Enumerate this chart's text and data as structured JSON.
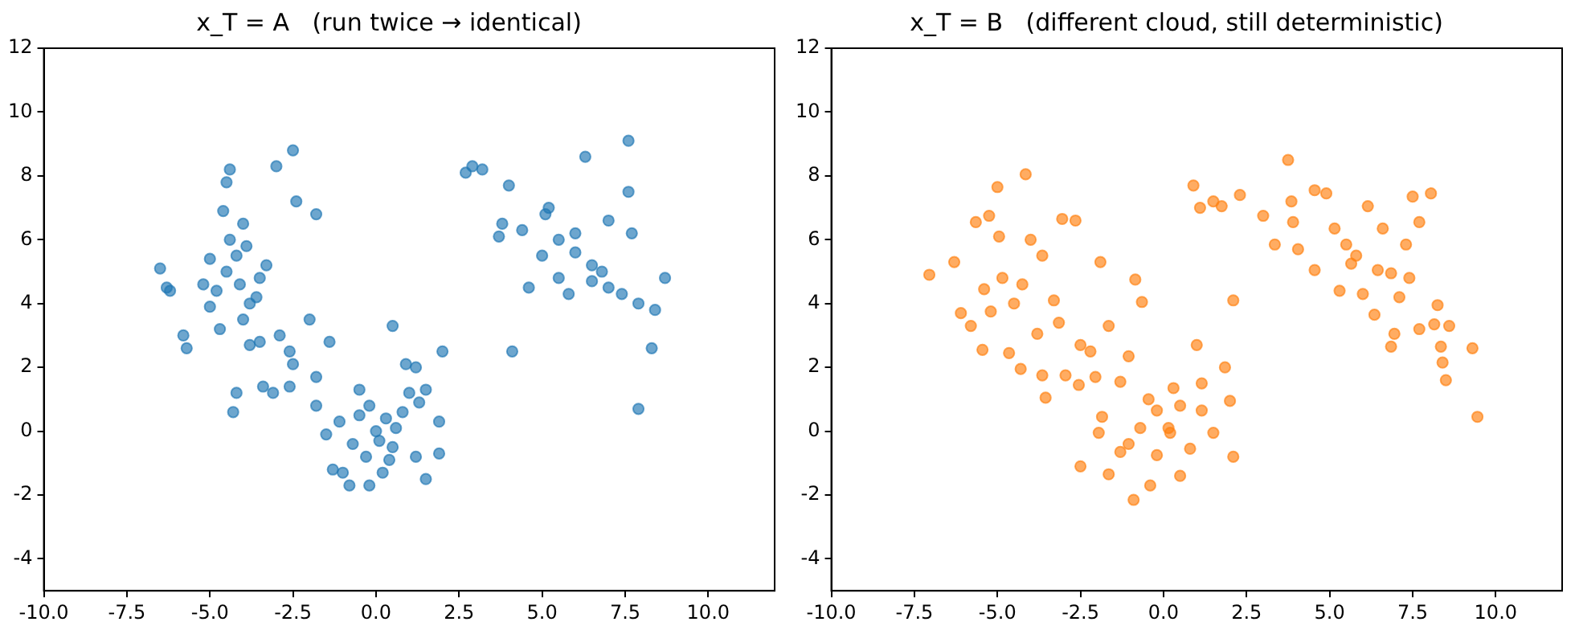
{
  "chart_data": [
    {
      "type": "scatter",
      "title": "x_T = A   (run twice → identical)",
      "xlim": [
        -10,
        12
      ],
      "ylim": [
        -5,
        12
      ],
      "marker": "circle",
      "grid": false,
      "legend": false,
      "xticks": [
        {
          "value": -10,
          "label": "-10.0"
        },
        {
          "value": -7.5,
          "label": "-7.5"
        },
        {
          "value": -5,
          "label": "-5.0"
        },
        {
          "value": -2.5,
          "label": "-2.5"
        },
        {
          "value": 0,
          "label": "0.0"
        },
        {
          "value": 2.5,
          "label": "2.5"
        },
        {
          "value": 5,
          "label": "5.0"
        },
        {
          "value": 7.5,
          "label": "7.5"
        },
        {
          "value": 10,
          "label": "10.0"
        }
      ],
      "yticks": [
        -4,
        -2,
        0,
        2,
        4,
        6,
        8,
        10,
        12
      ],
      "series": [
        {
          "color": "#1f77b4",
          "x": [
            -6.5,
            -6.3,
            -6.2,
            -5.7,
            -5.8,
            -4.5,
            -4.4,
            -4.6,
            -3.0,
            -2.5,
            -2.4,
            -1.8,
            -4.0,
            -4.2,
            -4.5,
            -4.8,
            -5.0,
            -3.8,
            -3.5,
            -3.3,
            -4.0,
            -4.7,
            -3.5,
            -2.9,
            -2.0,
            -1.4,
            -2.6,
            -3.8,
            -3.4,
            -2.6,
            -1.8,
            -4.2,
            -4.3,
            -3.1,
            -5.2,
            -5.0,
            -4.4,
            -3.9,
            -3.6,
            -4.1,
            -1.8,
            -1.5,
            -1.0,
            -1.1,
            -0.5,
            -0.3,
            0,
            0.3,
            0.5,
            0.8,
            1.0,
            1.3,
            1.5,
            1.9,
            1.9,
            1.2,
            0.2,
            -0.2,
            -0.8,
            -1.3,
            1.5,
            0.9,
            1.2,
            0.5,
            2.0,
            -2.5,
            -0.5,
            0.1,
            -0.7,
            0.6,
            -0.2,
            0.4,
            2.7,
            2.9,
            3.2,
            4.0,
            3.8,
            3.7,
            4.4,
            5.1,
            5.5,
            6.0,
            6.5,
            6.0,
            5.0,
            5.5,
            4.6,
            6.3,
            7.6,
            7.6,
            7.0,
            7.7,
            8.7,
            8.4,
            7.9,
            7.0,
            7.9,
            4.1,
            8.3,
            6.8,
            5.8,
            7.4,
            5.2,
            6.5
          ],
          "values": [
            5.1,
            4.5,
            4.4,
            2.6,
            3.0,
            7.8,
            8.2,
            6.9,
            8.3,
            8.8,
            7.2,
            6.8,
            6.5,
            5.5,
            5.0,
            4.4,
            3.9,
            4.0,
            4.8,
            5.2,
            3.5,
            3.2,
            2.8,
            3.0,
            3.5,
            2.8,
            2.5,
            2.7,
            1.4,
            1.4,
            1.7,
            1.2,
            0.6,
            1.2,
            4.6,
            5.4,
            6.0,
            5.8,
            4.2,
            4.6,
            0.8,
            -0.1,
            -1.3,
            0.3,
            1.3,
            -0.8,
            0,
            0.4,
            -0.5,
            0.6,
            1.2,
            0.9,
            1.3,
            0.3,
            -0.7,
            -0.8,
            -1.3,
            -1.7,
            -1.7,
            -1.2,
            -1.5,
            2.1,
            2.0,
            3.3,
            2.5,
            2.1,
            0.5,
            -0.3,
            -0.4,
            0.1,
            0.8,
            -0.9,
            8.1,
            8.3,
            8.2,
            7.7,
            6.5,
            6.1,
            6.3,
            6.8,
            6.0,
            5.6,
            5.2,
            6.2,
            5.5,
            4.8,
            4.5,
            8.6,
            9.1,
            7.5,
            6.6,
            6.2,
            4.8,
            3.8,
            4.0,
            4.5,
            0.7,
            2.5,
            2.6,
            5.0,
            4.3,
            4.3,
            7.0,
            4.7
          ]
        }
      ]
    },
    {
      "type": "scatter",
      "title": "x_T = B   (different cloud, still deterministic)",
      "xlim": [
        -10,
        12
      ],
      "ylim": [
        -5,
        12
      ],
      "marker": "circle",
      "grid": false,
      "legend": false,
      "xticks": [
        {
          "value": -10,
          "label": "-10.0"
        },
        {
          "value": -7.5,
          "label": "-7.5"
        },
        {
          "value": -5,
          "label": "-5.0"
        },
        {
          "value": -2.5,
          "label": "-2.5"
        },
        {
          "value": 0,
          "label": "0.0"
        },
        {
          "value": 2.5,
          "label": "2.5"
        },
        {
          "value": 5,
          "label": "5.0"
        },
        {
          "value": 7.5,
          "label": "7.5"
        },
        {
          "value": 10,
          "label": "10.0"
        }
      ],
      "yticks": [
        -4,
        -2,
        0,
        2,
        4,
        6,
        8,
        10,
        12
      ],
      "series": [
        {
          "color": "#ff7f0e",
          "x": [
            -7.05,
            -6.3,
            -6.1,
            -5.8,
            -5.45,
            -5.65,
            -5.0,
            -4.15,
            -5.25,
            -4.95,
            -4.85,
            -4.5,
            -4.3,
            -3.65,
            -3.55,
            -2.95,
            -2.55,
            -2.5,
            -2.2,
            -2.05,
            -1.65,
            -1.9,
            -2.65,
            -3.05,
            -3.65,
            -3.3,
            -3.8,
            -4.65,
            -4.25,
            -4.0,
            -5.2,
            -5.4,
            -3.15,
            -2.5,
            -1.65,
            -0.9,
            -0.4,
            0.5,
            2.1,
            2.0,
            1.85,
            1.0,
            -0.85,
            -0.65,
            -1.05,
            -1.3,
            -1.85,
            -1.95,
            -1.3,
            -0.7,
            -0.2,
            0.15,
            0.5,
            1.15,
            1.5,
            0.8,
            -0.2,
            0.3,
            -0.45,
            -1.05,
            0.2,
            1.15,
            2.1,
            0.9,
            1.1,
            1.5,
            1.75,
            2.3,
            3.0,
            3.35,
            3.75,
            3.85,
            3.9,
            4.05,
            4.55,
            4.9,
            4.55,
            5.3,
            5.15,
            5.5,
            5.8,
            6.15,
            6.0,
            6.35,
            6.6,
            6.85,
            6.85,
            6.95,
            7.3,
            7.4,
            7.5,
            7.7,
            8.05,
            7.7,
            8.25,
            8.15,
            8.35,
            8.4,
            8.5,
            8.6,
            9.3,
            9.45,
            7.1,
            6.45,
            5.65
          ],
          "values": [
            4.9,
            5.3,
            3.7,
            3.3,
            2.55,
            6.55,
            7.65,
            8.05,
            6.75,
            6.1,
            4.8,
            4.0,
            1.95,
            1.75,
            1.05,
            1.75,
            1.45,
            2.7,
            2.5,
            1.7,
            3.3,
            5.3,
            6.6,
            6.65,
            5.5,
            4.1,
            3.05,
            2.45,
            4.6,
            6.0,
            3.75,
            4.45,
            3.4,
            -1.1,
            -1.35,
            -2.15,
            -1.7,
            -1.4,
            -0.8,
            0.95,
            2.0,
            2.7,
            4.75,
            4.05,
            2.35,
            1.55,
            0.45,
            -0.05,
            -0.65,
            0.1,
            0.65,
            0.1,
            0.8,
            1.5,
            -0.05,
            -0.55,
            -0.75,
            1.35,
            1.0,
            -0.4,
            -0.05,
            0.65,
            4.1,
            7.7,
            7.0,
            7.2,
            7.05,
            7.4,
            6.75,
            5.85,
            8.5,
            7.2,
            6.55,
            5.7,
            7.55,
            7.45,
            5.05,
            4.4,
            6.35,
            5.85,
            5.5,
            7.05,
            4.3,
            3.65,
            6.35,
            4.95,
            2.65,
            3.05,
            5.85,
            4.8,
            7.35,
            6.55,
            7.45,
            3.2,
            3.95,
            3.35,
            2.65,
            2.15,
            1.6,
            3.3,
            2.6,
            0.45,
            4.2,
            5.05,
            5.25
          ]
        }
      ]
    }
  ]
}
